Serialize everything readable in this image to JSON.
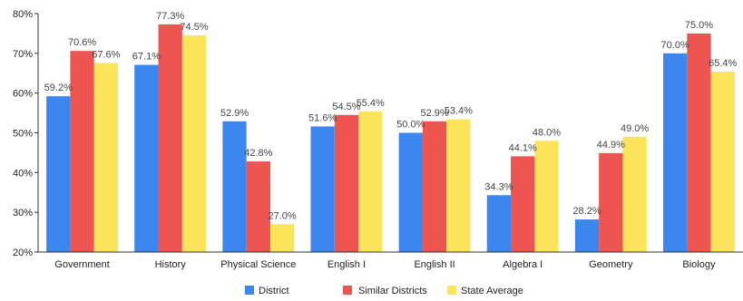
{
  "chart_data": {
    "type": "bar",
    "categories": [
      "Government",
      "History",
      "Physical Science",
      "English I",
      "English II",
      "Algebra I",
      "Geometry",
      "Biology"
    ],
    "series": [
      {
        "name": "District",
        "color": "#3b86ef",
        "values": [
          59.2,
          67.1,
          52.9,
          51.6,
          50.0,
          34.3,
          28.2,
          70.0
        ]
      },
      {
        "name": "Similar Districts",
        "color": "#ee5550",
        "values": [
          70.6,
          77.3,
          42.8,
          54.5,
          52.9,
          44.1,
          44.9,
          75.0
        ]
      },
      {
        "name": "State Average",
        "color": "#fbe35a",
        "values": [
          67.6,
          74.5,
          27.0,
          55.4,
          53.4,
          48.0,
          49.0,
          65.4
        ]
      }
    ],
    "data_labels": [
      [
        "59.2%",
        "67.1%",
        "52.9%",
        "51.6%",
        "50.0%",
        "34.3%",
        "28.2%",
        "70.0%"
      ],
      [
        "70.6%",
        "77.3%",
        "42.8%",
        "54.5%",
        "52.9%",
        "44.1%",
        "44.9%",
        "75.0%"
      ],
      [
        "67.6%",
        "74.5%",
        "27.0%",
        "55.4%",
        "53.4%",
        "48.0%",
        "49.0%",
        "65.4%"
      ]
    ],
    "yticks": [
      20,
      30,
      40,
      50,
      60,
      70,
      80
    ],
    "ytick_labels": [
      "20%",
      "30%",
      "40%",
      "50%",
      "60%",
      "70%",
      "80%"
    ],
    "ylim": [
      20,
      80
    ],
    "grid": false,
    "legend_position": "bottom-center",
    "title": "",
    "xlabel": "",
    "ylabel": ""
  }
}
